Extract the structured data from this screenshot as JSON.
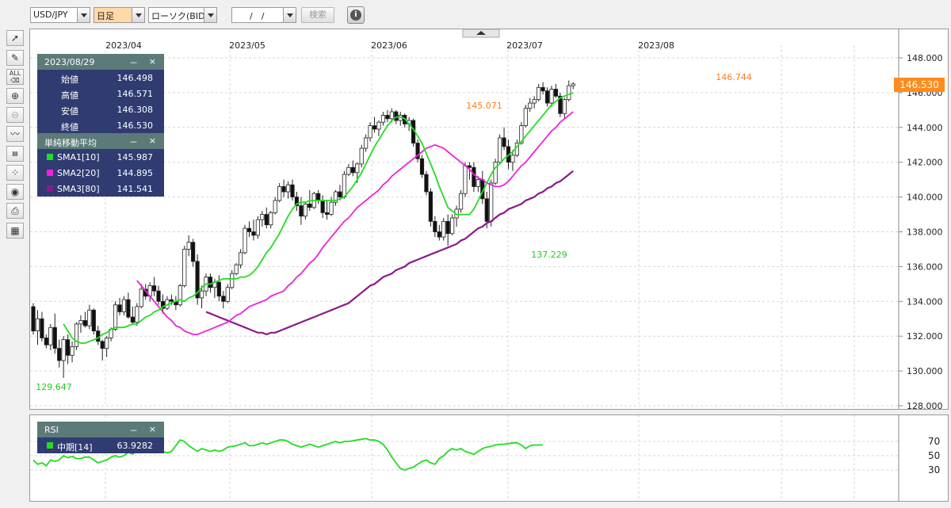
{
  "toolbar": {
    "symbol": "USD/JPY",
    "period": "日足",
    "chart_type": "ローソク(BID)",
    "date_value": "/　/",
    "search_label": "検索",
    "info_label": "i"
  },
  "ohlc": {
    "date": "2023/08/29",
    "labels": {
      "open": "始値",
      "high": "高値",
      "low": "安値",
      "close": "終値"
    },
    "open": "146.498",
    "high": "146.571",
    "low": "146.308",
    "close": "146.530",
    "minimize": "－",
    "close_x": "×"
  },
  "sma_panel": {
    "title": "単純移動平均",
    "minimize": "－",
    "close_x": "×",
    "items": [
      {
        "label": "SMA1[10]",
        "value": "145.987",
        "color": "#22dd22"
      },
      {
        "label": "SMA2[20]",
        "value": "144.895",
        "color": "#ee22dd"
      },
      {
        "label": "SMA3[80]",
        "value": "141.541",
        "color": "#8b1a8b"
      }
    ]
  },
  "rsi_panel": {
    "title": "RSI",
    "minimize": "－",
    "close_x": "×",
    "items": [
      {
        "label": "中期[14]",
        "value": "63.9282",
        "color": "#22dd22"
      }
    ]
  },
  "price_badge": "146.530",
  "annotations": {
    "max": "146.744",
    "peak_jul": "145.071",
    "low_jul": "137.229",
    "min": "129.647"
  },
  "chart_data": {
    "type": "candlestick",
    "x_ticks": [
      "2023/04",
      "2023/05",
      "2023/06",
      "2023/07",
      "2023/08"
    ],
    "y_ticks": [
      "148.000",
      "146.000",
      "144.000",
      "142.000",
      "140.000",
      "138.000",
      "136.000",
      "134.000",
      "132.000",
      "130.000",
      "128.000"
    ],
    "ylim": [
      128,
      148
    ],
    "candles": [
      [
        133.7,
        133.9,
        132.1,
        132.3
      ],
      [
        132.3,
        133.5,
        131.5,
        133.0
      ],
      [
        133.0,
        133.4,
        131.7,
        131.9
      ],
      [
        131.9,
        132.1,
        131.3,
        131.5
      ],
      [
        131.5,
        132.7,
        131.2,
        132.5
      ],
      [
        132.5,
        133.3,
        131.0,
        131.3
      ],
      [
        131.3,
        131.8,
        130.2,
        130.6
      ],
      [
        130.6,
        132.0,
        129.6,
        131.8
      ],
      [
        131.8,
        132.1,
        130.4,
        130.9
      ],
      [
        130.9,
        131.7,
        130.5,
        131.4
      ],
      [
        131.4,
        132.8,
        131.2,
        132.7
      ],
      [
        132.7,
        133.2,
        132.2,
        132.9
      ],
      [
        132.9,
        133.4,
        132.5,
        132.6
      ],
      [
        132.6,
        133.8,
        132.4,
        133.5
      ],
      [
        133.5,
        133.6,
        132.1,
        132.3
      ],
      [
        132.3,
        132.6,
        131.5,
        131.7
      ],
      [
        131.7,
        131.8,
        130.6,
        131.3
      ],
      [
        131.3,
        132.0,
        130.8,
        131.9
      ],
      [
        131.9,
        132.5,
        131.7,
        132.4
      ],
      [
        132.4,
        134.0,
        132.3,
        133.8
      ],
      [
        133.8,
        134.2,
        133.2,
        133.4
      ],
      [
        133.4,
        134.3,
        133.2,
        134.1
      ],
      [
        134.1,
        134.5,
        133.0,
        133.1
      ],
      [
        133.1,
        133.7,
        132.7,
        132.8
      ],
      [
        132.8,
        133.9,
        132.6,
        133.7
      ],
      [
        133.7,
        135.0,
        133.6,
        134.7
      ],
      [
        134.7,
        135.0,
        134.1,
        134.3
      ],
      [
        134.3,
        135.1,
        134.0,
        134.9
      ],
      [
        134.9,
        135.4,
        134.3,
        134.6
      ],
      [
        134.6,
        134.9,
        133.8,
        134.0
      ],
      [
        134.0,
        134.4,
        133.3,
        133.6
      ],
      [
        133.6,
        134.3,
        133.5,
        134.1
      ],
      [
        134.1,
        134.4,
        133.8,
        134.0
      ],
      [
        134.0,
        134.3,
        133.5,
        133.8
      ],
      [
        133.8,
        135.0,
        133.7,
        134.9
      ],
      [
        134.9,
        137.2,
        134.8,
        137.0
      ],
      [
        137.0,
        137.8,
        136.6,
        137.4
      ],
      [
        137.4,
        137.6,
        136.0,
        136.3
      ],
      [
        136.3,
        136.7,
        133.8,
        134.2
      ],
      [
        134.2,
        134.9,
        133.6,
        134.6
      ],
      [
        134.6,
        135.6,
        134.3,
        135.4
      ],
      [
        135.4,
        135.6,
        134.5,
        134.8
      ],
      [
        134.8,
        135.3,
        134.2,
        135.1
      ],
      [
        135.1,
        135.5,
        134.0,
        134.3
      ],
      [
        134.3,
        134.6,
        133.6,
        134.0
      ],
      [
        134.0,
        135.0,
        133.9,
        134.8
      ],
      [
        134.8,
        135.8,
        134.7,
        135.6
      ],
      [
        135.6,
        136.2,
        135.5,
        136.1
      ],
      [
        136.1,
        137.0,
        135.9,
        136.8
      ],
      [
        136.8,
        138.4,
        136.7,
        138.2
      ],
      [
        138.2,
        138.6,
        137.7,
        138.0
      ],
      [
        138.0,
        138.7,
        137.5,
        137.8
      ],
      [
        137.8,
        138.9,
        137.6,
        138.7
      ],
      [
        138.7,
        139.2,
        138.3,
        139.0
      ],
      [
        139.0,
        139.4,
        138.2,
        138.4
      ],
      [
        138.4,
        139.2,
        138.2,
        139.1
      ],
      [
        139.1,
        140.0,
        139.0,
        139.8
      ],
      [
        139.8,
        140.8,
        139.7,
        140.6
      ],
      [
        140.6,
        141.0,
        140.0,
        140.3
      ],
      [
        140.3,
        140.9,
        139.9,
        140.7
      ],
      [
        140.7,
        141.0,
        139.8,
        140.0
      ],
      [
        140.0,
        140.3,
        139.2,
        139.5
      ],
      [
        139.5,
        140.0,
        138.4,
        138.9
      ],
      [
        138.9,
        139.7,
        138.7,
        139.6
      ],
      [
        139.6,
        140.4,
        139.2,
        139.4
      ],
      [
        139.4,
        140.3,
        139.3,
        140.2
      ],
      [
        140.2,
        140.4,
        139.6,
        139.8
      ],
      [
        139.8,
        140.1,
        138.8,
        139.1
      ],
      [
        139.1,
        139.8,
        138.7,
        139.0
      ],
      [
        139.0,
        140.0,
        138.9,
        139.7
      ],
      [
        139.7,
        140.4,
        139.5,
        140.3
      ],
      [
        140.3,
        140.7,
        139.8,
        140.0
      ],
      [
        140.0,
        141.5,
        139.9,
        141.3
      ],
      [
        141.3,
        141.9,
        141.2,
        141.7
      ],
      [
        141.7,
        142.1,
        141.2,
        141.4
      ],
      [
        141.4,
        142.0,
        140.8,
        141.9
      ],
      [
        141.9,
        143.0,
        141.7,
        142.8
      ],
      [
        142.8,
        143.6,
        142.6,
        143.4
      ],
      [
        143.4,
        144.3,
        143.2,
        144.1
      ],
      [
        144.1,
        144.6,
        143.7,
        143.9
      ],
      [
        143.9,
        144.4,
        143.5,
        144.3
      ],
      [
        144.3,
        144.9,
        144.1,
        144.7
      ],
      [
        144.7,
        145.0,
        144.3,
        144.5
      ],
      [
        144.5,
        145.1,
        144.3,
        144.9
      ],
      [
        144.9,
        145.0,
        144.2,
        144.4
      ],
      [
        144.4,
        144.9,
        144.1,
        144.7
      ],
      [
        144.7,
        144.8,
        144.0,
        144.2
      ],
      [
        144.2,
        144.6,
        143.8,
        144.4
      ],
      [
        144.4,
        144.5,
        142.9,
        143.1
      ],
      [
        143.1,
        143.3,
        142.0,
        142.2
      ],
      [
        142.2,
        142.4,
        141.1,
        141.3
      ],
      [
        141.3,
        141.5,
        140.1,
        140.3
      ],
      [
        140.3,
        140.5,
        138.3,
        138.6
      ],
      [
        138.6,
        138.9,
        137.7,
        138.0
      ],
      [
        138.0,
        138.4,
        137.5,
        137.7
      ],
      [
        137.7,
        138.8,
        137.5,
        138.6
      ],
      [
        138.6,
        139.0,
        137.2,
        137.9
      ],
      [
        137.9,
        139.0,
        137.8,
        138.8
      ],
      [
        138.8,
        139.5,
        138.3,
        139.3
      ],
      [
        139.3,
        140.4,
        139.1,
        140.2
      ],
      [
        140.2,
        142.0,
        140.0,
        141.8
      ],
      [
        141.8,
        142.0,
        141.0,
        141.7
      ],
      [
        141.7,
        142.0,
        140.3,
        140.6
      ],
      [
        140.6,
        141.2,
        140.3,
        141.0
      ],
      [
        141.0,
        141.5,
        139.6,
        139.9
      ],
      [
        139.9,
        140.3,
        138.2,
        138.6
      ],
      [
        138.6,
        141.0,
        138.3,
        140.8
      ],
      [
        140.8,
        142.2,
        140.7,
        142.0
      ],
      [
        142.0,
        143.6,
        141.9,
        143.4
      ],
      [
        143.4,
        144.0,
        142.7,
        142.9
      ],
      [
        142.9,
        143.3,
        141.6,
        142.0
      ],
      [
        142.0,
        142.7,
        141.5,
        142.4
      ],
      [
        142.4,
        143.3,
        142.3,
        143.1
      ],
      [
        143.1,
        144.3,
        143.0,
        144.1
      ],
      [
        144.1,
        145.3,
        144.0,
        145.1
      ],
      [
        145.1,
        145.7,
        144.9,
        145.4
      ],
      [
        145.4,
        145.8,
        145.1,
        145.6
      ],
      [
        145.6,
        146.5,
        145.5,
        146.3
      ],
      [
        146.3,
        146.6,
        145.9,
        146.1
      ],
      [
        146.1,
        146.3,
        145.2,
        145.4
      ],
      [
        145.4,
        146.4,
        145.2,
        146.2
      ],
      [
        146.2,
        146.5,
        145.7,
        145.8
      ],
      [
        145.8,
        146.0,
        144.6,
        144.8
      ],
      [
        144.8,
        145.7,
        144.5,
        145.6
      ],
      [
        145.6,
        146.7,
        145.5,
        146.4
      ],
      [
        146.4,
        146.6,
        146.2,
        146.5
      ]
    ],
    "sma10": [
      132.7,
      132.3,
      131.9,
      131.7,
      131.6,
      131.6,
      131.7,
      131.8,
      131.9,
      132.1,
      132.2,
      132.4,
      132.5,
      132.5,
      132.5,
      132.6,
      132.7,
      132.7,
      132.9,
      133.1,
      133.2,
      133.4,
      133.5,
      133.7,
      133.8,
      133.9,
      134.0,
      134.1,
      134.0,
      134.2,
      134.3,
      134.5,
      134.8,
      135.0,
      135.0,
      135.1,
      135.2,
      135.3,
      135.3,
      135.3,
      135.3,
      135.4,
      135.4,
      135.5,
      135.7,
      136.0,
      136.4,
      136.8,
      137.1,
      137.5,
      137.9,
      138.4,
      138.9,
      139.3,
      139.6,
      139.7,
      139.7,
      139.8,
      139.8,
      139.8,
      139.8,
      139.8,
      139.8,
      139.8,
      139.9,
      140.0,
      140.3,
      140.6,
      141.0,
      141.4,
      141.9,
      142.4,
      142.9,
      143.3,
      143.7,
      144.1,
      144.4,
      144.6,
      144.6,
      144.5,
      144.2,
      143.9,
      143.5,
      143.1,
      142.5,
      141.9,
      141.3,
      140.6,
      140.0,
      139.4,
      139.2,
      139.0,
      139.0,
      139.0,
      139.0,
      139.3,
      139.8,
      140.3,
      140.8,
      141.3,
      141.7,
      141.9,
      142.2,
      142.4,
      142.6,
      142.9,
      143.2,
      143.5,
      143.8,
      144.1,
      144.4,
      144.7,
      145.0,
      145.3,
      145.5,
      145.7,
      145.8,
      145.9,
      146.0
    ],
    "sma20": [
      135.2,
      134.9,
      134.6,
      134.3,
      134.0,
      133.7,
      133.4,
      133.1,
      132.9,
      132.6,
      132.5,
      132.3,
      132.2,
      132.1,
      132.1,
      132.2,
      132.3,
      132.4,
      132.5,
      132.6,
      132.7,
      132.8,
      133.0,
      133.2,
      133.3,
      133.5,
      133.7,
      133.8,
      133.9,
      134.0,
      134.1,
      134.3,
      134.4,
      134.5,
      134.6,
      134.9,
      135.1,
      135.4,
      135.6,
      135.9,
      136.2,
      136.4,
      136.7,
      137.1,
      137.4,
      137.7,
      138.0,
      138.3,
      138.6,
      138.8,
      139.1,
      139.4,
      139.6,
      139.8,
      140.0,
      140.2,
      140.4,
      140.7,
      140.9,
      141.2,
      141.4,
      141.6,
      141.8,
      142.0,
      142.2,
      142.4,
      142.6,
      142.8,
      142.9,
      143.0,
      142.9,
      142.8,
      142.6,
      142.4,
      142.2,
      142.0,
      141.8,
      141.6,
      141.3,
      141.1,
      141.0,
      140.8,
      140.7,
      140.6,
      140.6,
      140.7,
      140.9,
      141.2,
      141.5,
      141.8,
      142.0,
      142.3,
      142.6,
      142.9,
      143.2,
      143.5,
      143.8,
      144.0,
      144.3,
      144.5,
      144.7,
      144.9
    ],
    "sma80": [
      133.4,
      133.3,
      133.2,
      133.1,
      133.0,
      132.9,
      132.8,
      132.7,
      132.6,
      132.5,
      132.4,
      132.3,
      132.2,
      132.2,
      132.1,
      132.2,
      132.2,
      132.3,
      132.4,
      132.5,
      132.6,
      132.7,
      132.8,
      132.9,
      133.0,
      133.1,
      133.2,
      133.3,
      133.4,
      133.5,
      133.6,
      133.7,
      133.8,
      133.9,
      134.1,
      134.3,
      134.5,
      134.7,
      134.9,
      135.0,
      135.2,
      135.4,
      135.5,
      135.6,
      135.8,
      135.9,
      136.0,
      136.2,
      136.3,
      136.4,
      136.5,
      136.6,
      136.7,
      136.8,
      136.9,
      137.0,
      137.1,
      137.2,
      137.3,
      137.5,
      137.6,
      137.8,
      138.0,
      138.2,
      138.3,
      138.5,
      138.6,
      138.8,
      139.0,
      139.1,
      139.3,
      139.4,
      139.5,
      139.6,
      139.8,
      139.9,
      140.0,
      140.2,
      140.3,
      140.5,
      140.6,
      140.8,
      140.9,
      141.1,
      141.3,
      141.5
    ],
    "rsi": [
      44,
      38,
      40,
      36,
      44,
      42,
      44,
      50,
      47,
      49,
      46,
      46,
      48,
      48,
      44,
      40,
      42,
      44,
      48,
      50,
      48,
      50,
      55,
      52,
      58,
      54,
      57,
      55,
      54,
      55,
      56,
      54,
      56,
      64,
      72,
      70,
      64,
      60,
      56,
      60,
      58,
      56,
      58,
      56,
      58,
      62,
      63,
      64,
      66,
      68,
      64,
      64,
      66,
      68,
      66,
      68,
      70,
      72,
      72,
      70,
      66,
      64,
      62,
      64,
      66,
      64,
      62,
      64,
      66,
      68,
      70,
      68,
      70,
      70,
      71,
      72,
      73,
      74,
      72,
      72,
      70,
      66,
      58,
      48,
      40,
      32,
      30,
      32,
      34,
      38,
      42,
      44,
      40,
      38,
      46,
      50,
      56,
      60,
      58,
      60,
      56,
      54,
      52,
      56,
      60,
      62,
      63,
      65,
      66,
      66,
      67,
      68,
      68,
      65,
      60,
      64,
      65,
      65,
      65
    ],
    "rsi_ticks": [
      "70",
      "50",
      "30"
    ]
  }
}
